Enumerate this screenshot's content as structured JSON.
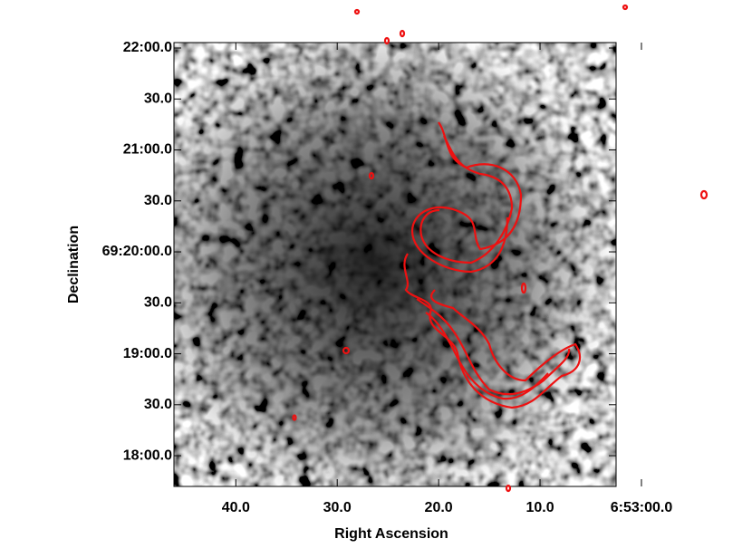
{
  "chart_data": {
    "type": "image",
    "x_label": "Right Ascension",
    "y_label": "Declination",
    "xlim": [
      46.1,
      2.5
    ],
    "xticks": [
      {
        "value": 40,
        "label": "40.0"
      },
      {
        "value": 30,
        "label": "30.0"
      },
      {
        "value": 20,
        "label": "20.0"
      },
      {
        "value": 10,
        "label": "10.0"
      },
      {
        "value": 0,
        "label": "6:53:00.0"
      }
    ],
    "ylim": [
      1061.9,
      1323.2
    ],
    "yticks": [
      {
        "value": 1320,
        "label": "22:00.0"
      },
      {
        "value": 1290,
        "label": "30.0"
      },
      {
        "value": 1260,
        "label": "21:00.0"
      },
      {
        "value": 1230,
        "label": "30.0"
      },
      {
        "value": 1200,
        "label": "69:20:00.0"
      },
      {
        "value": 1170,
        "label": "30.0"
      },
      {
        "value": 1140,
        "label": "19:00.0"
      },
      {
        "value": 1110,
        "label": "30.0"
      },
      {
        "value": 1080,
        "label": "18:00.0"
      }
    ],
    "contour_color": "#ee1111"
  }
}
